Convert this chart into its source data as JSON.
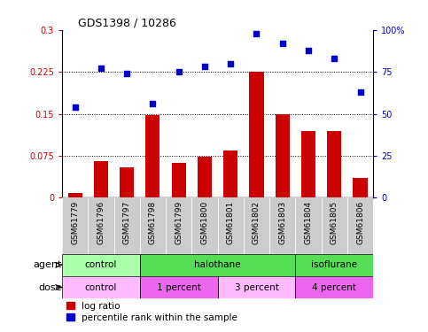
{
  "title": "GDS1398 / 10286",
  "samples": [
    "GSM61779",
    "GSM61796",
    "GSM61797",
    "GSM61798",
    "GSM61799",
    "GSM61800",
    "GSM61801",
    "GSM61802",
    "GSM61803",
    "GSM61804",
    "GSM61805",
    "GSM61806"
  ],
  "log_ratio": [
    0.008,
    0.065,
    0.055,
    0.148,
    0.063,
    0.073,
    0.085,
    0.225,
    0.15,
    0.12,
    0.12,
    0.035
  ],
  "percentile_rank": [
    54,
    77,
    74,
    56,
    75,
    78,
    80,
    98,
    92,
    88,
    83,
    63
  ],
  "bar_color": "#cc0000",
  "scatter_color": "#0000cc",
  "ylim_left": [
    0,
    0.3
  ],
  "ylim_right": [
    0,
    100
  ],
  "yticks_left": [
    0,
    0.075,
    0.15,
    0.225,
    0.3
  ],
  "ytick_labels_left": [
    "0",
    "0.075",
    "0.15",
    "0.225",
    "0.3"
  ],
  "yticks_right": [
    0,
    25,
    50,
    75,
    100
  ],
  "ytick_labels_right": [
    "0",
    "25",
    "50",
    "75",
    "100%"
  ],
  "agent_groups": [
    {
      "label": "control",
      "start": 0,
      "end": 3,
      "color": "#aaffaa"
    },
    {
      "label": "halothane",
      "start": 3,
      "end": 9,
      "color": "#55dd55"
    },
    {
      "label": "isoflurane",
      "start": 9,
      "end": 12,
      "color": "#55dd55"
    }
  ],
  "dose_groups": [
    {
      "label": "control",
      "start": 0,
      "end": 3,
      "color": "#ffbbff"
    },
    {
      "label": "1 percent",
      "start": 3,
      "end": 6,
      "color": "#ee66ee"
    },
    {
      "label": "3 percent",
      "start": 6,
      "end": 9,
      "color": "#ffbbff"
    },
    {
      "label": "4 percent",
      "start": 9,
      "end": 12,
      "color": "#ee66ee"
    }
  ],
  "legend_bar_label": "log ratio",
  "legend_scatter_label": "percentile rank within the sample",
  "background_color": "#ffffff",
  "sample_bg_color": "#cccccc",
  "agent_label": "agent",
  "dose_label": "dose"
}
